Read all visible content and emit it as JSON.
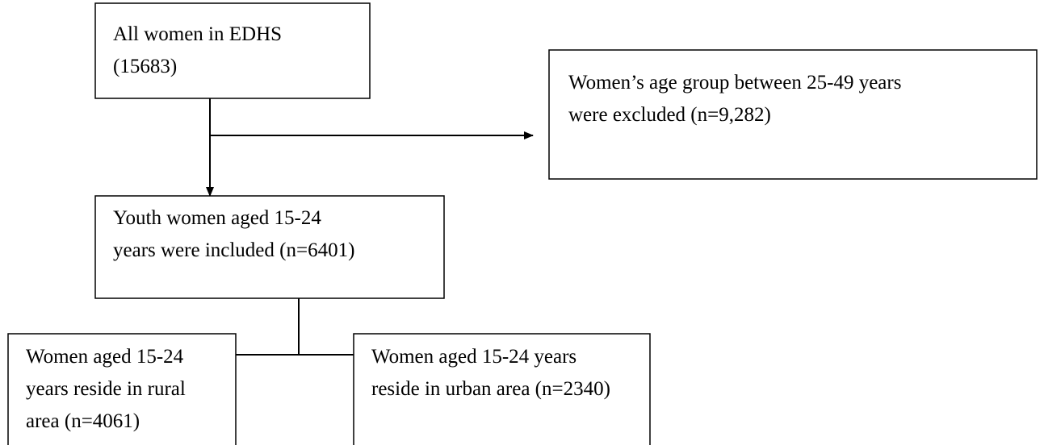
{
  "nodes": [
    {
      "lines": [
        "All women in EDHS",
        "(15683)"
      ]
    },
    {
      "lines": [
        "Women’s age group between 25-49 years",
        "were excluded (n=9,282)"
      ]
    },
    {
      "lines": [
        "Youth women aged 15-24",
        "years were included (n=6401)"
      ]
    },
    {
      "lines": [
        "Women aged 15-24",
        "years reside in rural",
        "area (n=4061)"
      ]
    },
    {
      "lines": [
        "Women aged 15-24 years",
        "reside in urban area (n=2340)"
      ]
    }
  ]
}
